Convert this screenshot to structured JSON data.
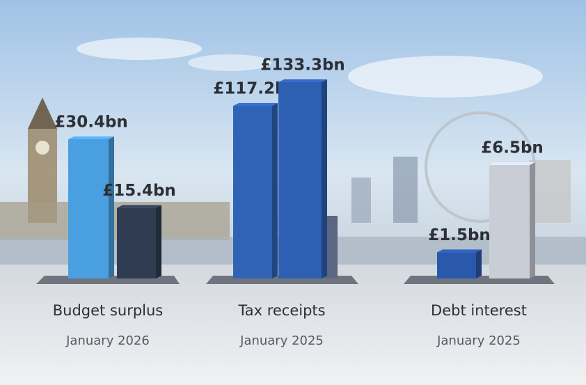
{
  "chart_data": [
    {
      "type": "bar",
      "title": "Budget surplus",
      "subtitle": "January 2026",
      "categories": [
        null,
        null
      ],
      "values": [
        30.4,
        15.4
      ],
      "value_labels": [
        "£30.4bn",
        "£15.4bn"
      ],
      "colors": [
        "#4a9fe0",
        "#2f3c52"
      ]
    },
    {
      "type": "bar",
      "title": "Tax receipts",
      "subtitle": "January 2025",
      "categories": [
        null,
        null
      ],
      "values": [
        117.2,
        133.3
      ],
      "value_labels": [
        "£117.2bn",
        "£133.3bn"
      ],
      "colors": [
        "#2f63b5",
        "#2d5fb3"
      ]
    },
    {
      "type": "bar",
      "title": "Debt interest",
      "subtitle": "January 2025",
      "categories": [
        null,
        null
      ],
      "values": [
        1.5,
        6.5
      ],
      "value_labels": [
        "£1.5bn",
        "£6.5bn"
      ],
      "colors": [
        "#2a58aa",
        "#c9ced6"
      ]
    }
  ]
}
